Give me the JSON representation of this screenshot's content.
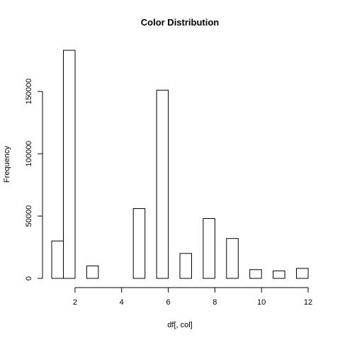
{
  "chart_data": {
    "type": "bar",
    "title": "Color  Distribution",
    "xlabel": "df[, col]",
    "ylabel": "Frequency",
    "bins": [
      {
        "start": 1.0,
        "end": 1.5,
        "value": 30000
      },
      {
        "start": 1.5,
        "end": 2.0,
        "value": 183000
      },
      {
        "start": 2.5,
        "end": 3.0,
        "value": 10000
      },
      {
        "start": 4.5,
        "end": 5.0,
        "value": 56000
      },
      {
        "start": 5.5,
        "end": 6.0,
        "value": 151000
      },
      {
        "start": 6.5,
        "end": 7.0,
        "value": 20000
      },
      {
        "start": 7.5,
        "end": 8.0,
        "value": 48000
      },
      {
        "start": 8.5,
        "end": 9.0,
        "value": 32000
      },
      {
        "start": 9.5,
        "end": 10.0,
        "value": 7000
      },
      {
        "start": 10.5,
        "end": 11.0,
        "value": 6000
      },
      {
        "start": 11.5,
        "end": 12.0,
        "value": 8000
      }
    ],
    "xlim": [
      1,
      12
    ],
    "ylim": [
      0,
      183000
    ],
    "xticks": [
      2,
      4,
      6,
      8,
      10,
      12
    ],
    "xtick_labels": [
      "2",
      "4",
      "6",
      "8",
      "10",
      "12"
    ],
    "yticks": [
      0,
      50000,
      100000,
      150000
    ],
    "ytick_labels": [
      "0",
      "50000",
      "100000",
      "150000"
    ],
    "grid": false,
    "bar_fill": "#ffffff",
    "bar_stroke": "#000000"
  }
}
